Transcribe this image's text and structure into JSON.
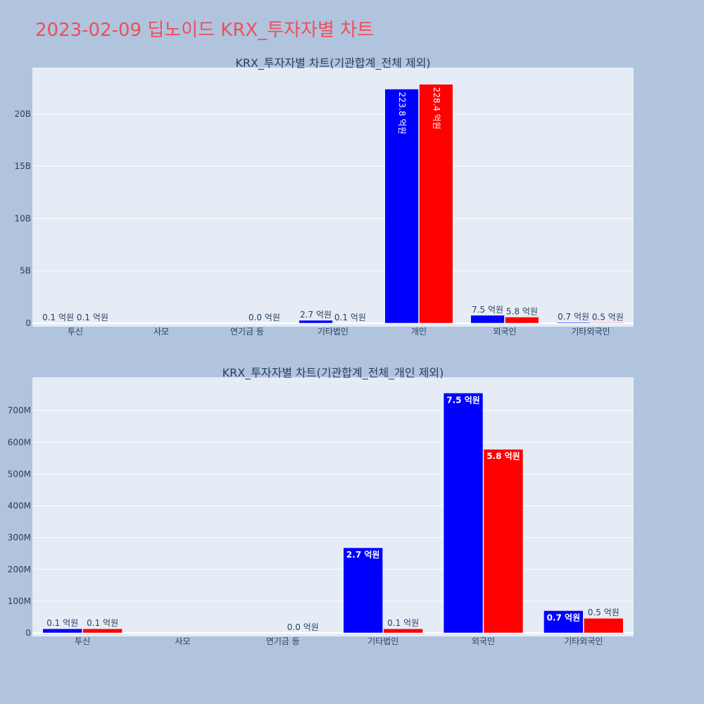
{
  "title": "2023-02-09 딥노이드 KRX_투자자별 차트",
  "colors": {
    "page_background": "#b0c4de",
    "plot_background": "#e5ecf6",
    "gridline": "#ffffff",
    "title": "#ef4e5c",
    "text": "#2a3f5f"
  },
  "chart_data": [
    {
      "type": "bar",
      "title": "KRX_투자자별 차트(기관합계_전체 제외)",
      "categories": [
        "투신",
        "사모",
        "연기금 등",
        "기타법인",
        "개인",
        "외국인",
        "기타외국인"
      ],
      "series": [
        {
          "color": "#0000ff",
          "values": [
            10000000,
            0,
            0,
            270000000,
            22380000000,
            750000000,
            70000000
          ],
          "labels": [
            "0.1 억원",
            "",
            "",
            "2.7 억원",
            "223.8 억원",
            "7.5 억원",
            "0.7 억원"
          ]
        },
        {
          "color": "#ff0000",
          "values": [
            10000000,
            0,
            0,
            10000000,
            22840000000,
            580000000,
            50000000
          ],
          "labels": [
            "0.1 억원",
            "",
            "0.0 억원",
            "0.1 억원",
            "228.4 억원",
            "5.8 억원",
            "0.5 억원"
          ]
        }
      ],
      "yticks": [
        {
          "value": 0,
          "label": "0"
        },
        {
          "value": 5000000000,
          "label": "5B"
        },
        {
          "value": 10000000000,
          "label": "10B"
        },
        {
          "value": 15000000000,
          "label": "15B"
        },
        {
          "value": 20000000000,
          "label": "20B"
        }
      ],
      "ylim": [
        0,
        24300000000
      ],
      "grid": true
    },
    {
      "type": "bar",
      "title": "KRX_투자자별 차트(기관합계_전체_개인 제외)",
      "categories": [
        "투신",
        "사모",
        "연기금 등",
        "기타법인",
        "외국인",
        "기타외국인"
      ],
      "series": [
        {
          "color": "#0000ff",
          "values": [
            13000000,
            0,
            0,
            268000000,
            755000000,
            70000000
          ],
          "labels": [
            "0.1 억원",
            "",
            "",
            "2.7 억원",
            "7.5 억원",
            "0.7 억원"
          ]
        },
        {
          "color": "#ff0000",
          "values": [
            13000000,
            0,
            0,
            13000000,
            578000000,
            46000000
          ],
          "labels": [
            "0.1 억원",
            "",
            "0.0 억원",
            "0.1 억원",
            "5.8 억원",
            "0.5 억원"
          ]
        }
      ],
      "yticks": [
        {
          "value": 0,
          "label": "0"
        },
        {
          "value": 100000000,
          "label": "100M"
        },
        {
          "value": 200000000,
          "label": "200M"
        },
        {
          "value": 300000000,
          "label": "300M"
        },
        {
          "value": 400000000,
          "label": "400M"
        },
        {
          "value": 500000000,
          "label": "500M"
        },
        {
          "value": 600000000,
          "label": "600M"
        },
        {
          "value": 700000000,
          "label": "700M"
        }
      ],
      "ylim": [
        0,
        800000000
      ],
      "grid": true
    }
  ]
}
